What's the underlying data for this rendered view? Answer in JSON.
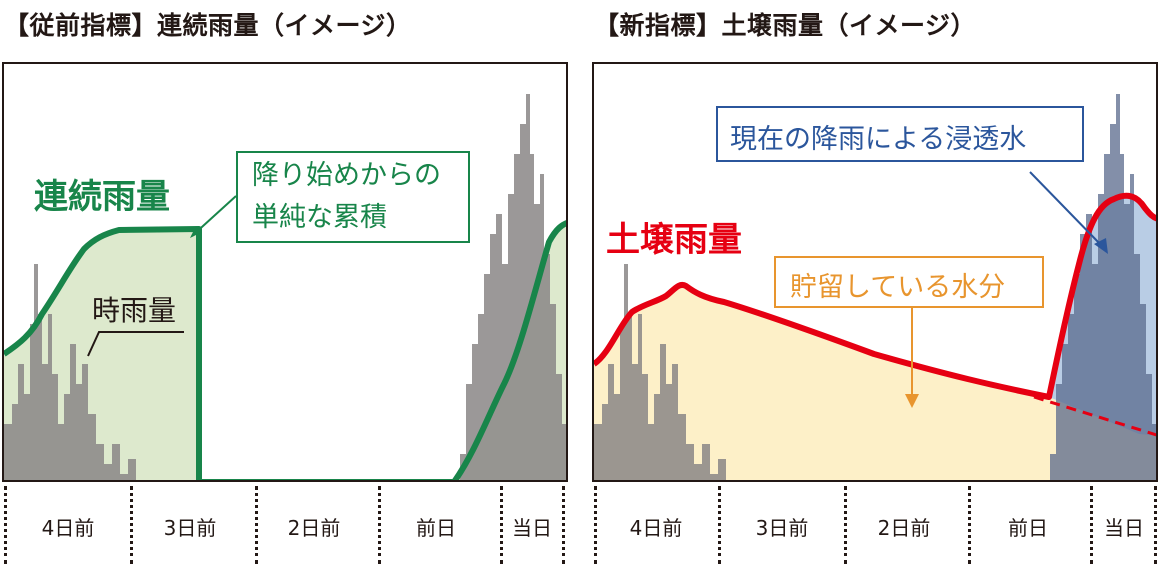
{
  "left": {
    "title": "【従前指標】連続雨量（イメージ）",
    "series_label": "連続雨量",
    "hourly_label": "時雨量",
    "callout_line1": "降り始めからの",
    "callout_line2": "単純な累積",
    "days": [
      "4日前",
      "3日前",
      "2日前",
      "前日",
      "当日"
    ]
  },
  "right": {
    "title": "【新指標】土壌雨量（イメージ）",
    "series_label": "土壌雨量",
    "top_callout": "現在の降雨による浸透水",
    "storage_callout": "貯留している水分",
    "days": [
      "4日前",
      "3日前",
      "2日前",
      "前日",
      "当日"
    ]
  },
  "colors": {
    "green": "#18854a",
    "green_fill": "#dde9cd",
    "red": "#e60012",
    "cream_fill": "#fdf0c8",
    "blue": "#2b569c",
    "blue_fill": "#b9cde5",
    "orange": "#e8952e",
    "bar_gray": "#8a8686"
  }
}
